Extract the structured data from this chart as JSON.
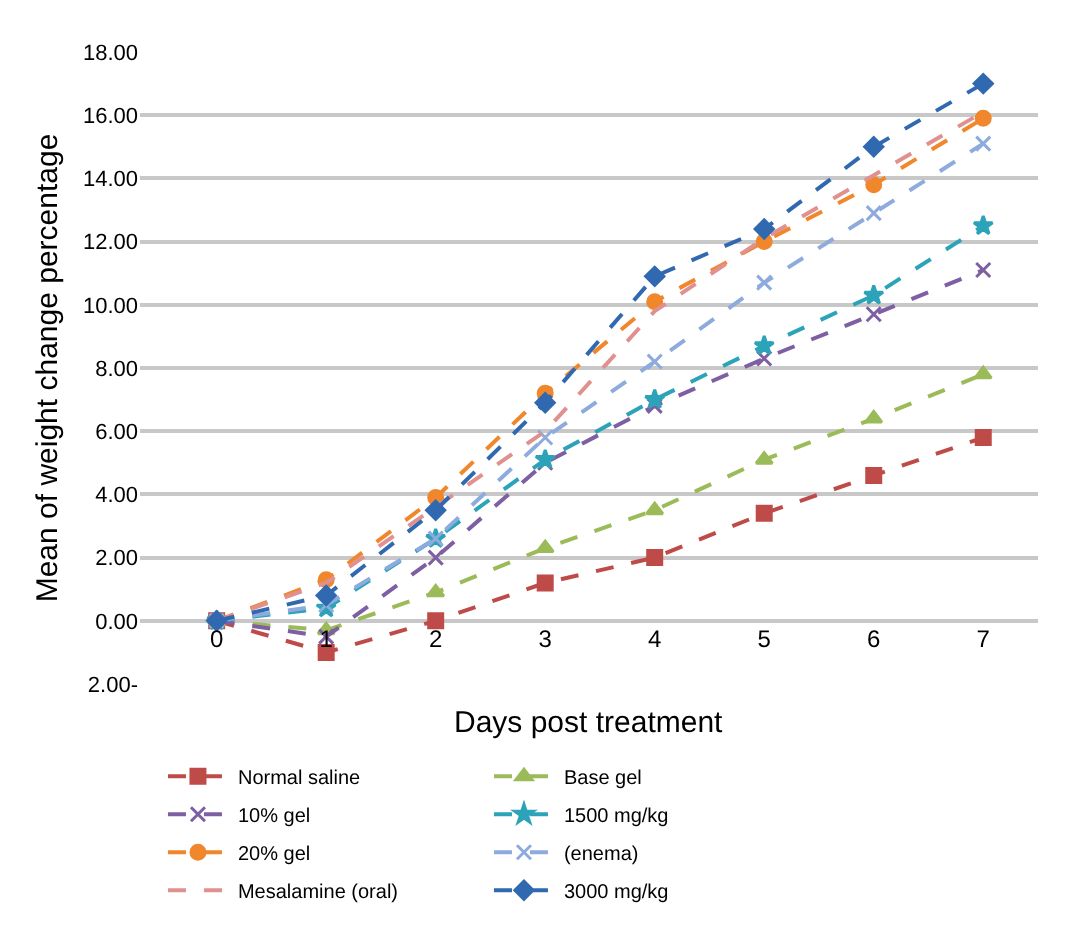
{
  "chart_data": {
    "type": "line",
    "xlabel": "Days post treatment",
    "ylabel": "Mean of weight change percentage",
    "categories": [
      "0",
      "1",
      "2",
      "3",
      "4",
      "5",
      "6",
      "7"
    ],
    "ylim": [
      -2,
      18
    ],
    "yticks": [
      {
        "value": -2,
        "label": "2.00-"
      },
      {
        "value": 0,
        "label": "0.00"
      },
      {
        "value": 2,
        "label": "2.00"
      },
      {
        "value": 4,
        "label": "4.00"
      },
      {
        "value": 6,
        "label": "6.00"
      },
      {
        "value": 8,
        "label": "8.00"
      },
      {
        "value": 10,
        "label": "10.00"
      },
      {
        "value": 12,
        "label": "12.00"
      },
      {
        "value": 14,
        "label": "14.00"
      },
      {
        "value": 16,
        "label": "16.00"
      },
      {
        "value": 18,
        "label": "18.00"
      }
    ],
    "grid": "y",
    "legend": "bottom",
    "line_style": "dashed",
    "series": [
      {
        "name": "Normal saline",
        "color": "#be4b48",
        "marker": "square",
        "values": [
          0,
          -1,
          0,
          1.2,
          2.0,
          3.4,
          4.6,
          5.8
        ]
      },
      {
        "name": "Base gel",
        "color": "#9bbb59",
        "marker": "triangle",
        "values": [
          0,
          -0.3,
          0.9,
          2.3,
          3.5,
          5.1,
          6.4,
          7.8
        ]
      },
      {
        "name": "10% gel",
        "color": "#7f5fa3",
        "marker": "cross",
        "values": [
          0,
          -0.5,
          2.0,
          5.0,
          6.8,
          8.3,
          9.7,
          11.1
        ]
      },
      {
        "name": "1500 mg/kg",
        "color": "#2ca3b9",
        "marker": "star",
        "values": [
          0,
          0.4,
          2.6,
          5.1,
          7.0,
          8.7,
          10.3,
          12.5
        ]
      },
      {
        "name": "20% gel",
        "color": "#f0872c",
        "marker": "circle",
        "values": [
          0,
          1.3,
          3.9,
          7.2,
          10.1,
          12.0,
          13.8,
          15.9
        ]
      },
      {
        "name": "(enema)",
        "color": "#8eabdd",
        "marker": "cross",
        "values": [
          0,
          0.5,
          2.6,
          5.8,
          8.2,
          10.7,
          12.9,
          15.1
        ]
      },
      {
        "name": "Mesalamine (oral)",
        "color": "#e0918f",
        "marker": "none",
        "values": [
          0,
          1.2,
          3.6,
          6.0,
          9.8,
          12.1,
          14.1,
          16.1
        ]
      },
      {
        "name": "3000 mg/kg",
        "color": "#3169b0",
        "marker": "diamond",
        "values": [
          0,
          0.8,
          3.5,
          6.9,
          10.9,
          12.4,
          15.0,
          17.0
        ]
      }
    ]
  }
}
